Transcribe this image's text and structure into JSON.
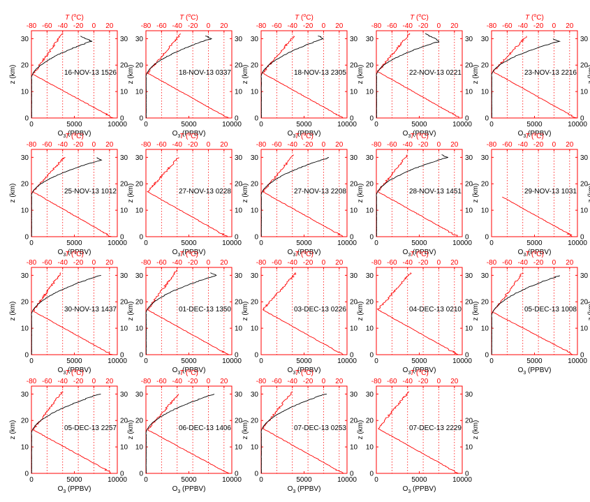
{
  "labels": {
    "top_axis_T": "T",
    "top_axis_unit": " (°C)",
    "top_axis_unit_sup": "o",
    "bottom_axis_O3": "O",
    "bottom_axis_sub": "3",
    "bottom_axis_unit": " (PPBV)",
    "left_axis": "z (km)",
    "right_axis": "z (km)"
  },
  "colors": {
    "temperature": "#ff0000",
    "ozone": "#000000",
    "frame": "#ff0000",
    "tick_text": "#000000",
    "top_tick_text": "#ff0000"
  },
  "chart_data": {
    "type": "line",
    "panel_count": 19,
    "x_ozone": {
      "label": "O3 (PPBV)",
      "lim": [
        0,
        10000
      ],
      "ticks": [
        0,
        5000,
        10000
      ]
    },
    "x_temperature": {
      "label": "T (°C)",
      "lim": [
        -80,
        30
      ],
      "ticks": [
        -80,
        -60,
        -40,
        -20,
        0,
        20
      ]
    },
    "y": {
      "label": "z (km)",
      "lim": [
        0,
        33
      ],
      "ticks": [
        0,
        10,
        20,
        30
      ]
    },
    "grid": "dotted vertical at temperature ticks",
    "series_colors": {
      "temperature": "#ff0000",
      "ozone": "#000000"
    },
    "panels": [
      {
        "label": "16-NOV-13 1526",
        "o3_top": 7000,
        "o3_top_z": 31,
        "t_top": -40,
        "t_top_z": 32,
        "t_surface": 25,
        "min_z": 16.5,
        "o3_peak_z": 29
      },
      {
        "label": "18-NOV-13 0337",
        "o3_top": 7600,
        "o3_top_z": 31,
        "t_top": -35,
        "t_top_z": 32,
        "t_surface": 25,
        "min_z": 17,
        "o3_peak_z": 30
      },
      {
        "label": "18-NOV-13 2305",
        "o3_top": 7300,
        "o3_top_z": 31,
        "t_top": -38,
        "t_top_z": 31,
        "t_surface": 25,
        "min_z": 17,
        "o3_peak_z": 30
      },
      {
        "label": "22-NOV-13 0221",
        "o3_top": 7400,
        "o3_top_z": 32,
        "t_top": -37,
        "t_top_z": 32,
        "t_surface": 27,
        "min_z": 17.5,
        "o3_peak_z": 29
      },
      {
        "label": "23-NOV-13 2216",
        "o3_top": 7800,
        "o3_top_z": 30,
        "t_top": -35,
        "t_top_z": 31,
        "t_surface": 28,
        "min_z": 17.5,
        "o3_peak_z": 29
      },
      {
        "label": "25-NOV-13 1012",
        "o3_top": 8100,
        "o3_top_z": 30,
        "t_top": -38,
        "t_top_z": 30,
        "t_surface": 22,
        "min_z": 17,
        "o3_peak_z": 29
      },
      {
        "label": "27-NOV-13 0228",
        "t_top": -38,
        "t_top_z": 30,
        "t_surface": 24,
        "min_z": 17
      },
      {
        "label": "27-NOV-13 2208",
        "o3_top": 8000,
        "o3_top_z": 30,
        "t_top": -38,
        "t_top_z": 31,
        "t_surface": 25,
        "min_z": 17,
        "o3_peak_z": 30
      },
      {
        "label": "28-NOV-13 1451",
        "o3_top": 8300,
        "o3_top_z": 31,
        "t_top": -40,
        "t_top_z": 31,
        "t_surface": 25,
        "min_z": 17,
        "o3_peak_z": 30
      },
      {
        "label": "29-NOV-13 1031",
        "t_surface": 25,
        "t_top_z": 15
      },
      {
        "label": "30-NOV-13 1437",
        "o3_top": 8000,
        "o3_top_z": 30,
        "t_top": -42,
        "t_top_z": 31,
        "t_surface": 23,
        "min_z": 16.5,
        "o3_peak_z": 30
      },
      {
        "label": "01-DEC-13 1350",
        "o3_top": 8200,
        "o3_top_z": 31,
        "t_top": -40,
        "t_top_z": 32,
        "t_surface": 25,
        "min_z": 17,
        "o3_peak_z": 30
      },
      {
        "label": "03-DEC-13 0226",
        "t_top": -35,
        "t_top_z": 31,
        "t_surface": 25,
        "min_z": 17
      },
      {
        "label": "04-DEC-13 0210",
        "t_top": -36,
        "t_top_z": 31,
        "t_surface": 25,
        "min_z": 17
      },
      {
        "label": "05-DEC-13 1008",
        "o3_top": 8000,
        "o3_top_z": 30,
        "t_top": -40,
        "t_top_z": 31,
        "t_surface": 25,
        "min_z": 16,
        "o3_peak_z": 30
      },
      {
        "label": "05-DEC-13 2257",
        "o3_top": 8000,
        "o3_top_z": 30,
        "t_top": -40,
        "t_top_z": 31,
        "t_surface": 24,
        "min_z": 16.5,
        "o3_peak_z": 30
      },
      {
        "label": "06-DEC-13 1406",
        "o3_top": 8000,
        "o3_top_z": 30,
        "t_top": -38,
        "t_top_z": 30,
        "t_surface": 25,
        "min_z": 16.5,
        "o3_peak_z": 30
      },
      {
        "label": "07-DEC-13 0253",
        "o3_top": 7500,
        "o3_top_z": 30,
        "t_top": -40,
        "t_top_z": 31,
        "t_surface": 25,
        "min_z": 17,
        "o3_peak_z": 30
      },
      {
        "label": "07-DEC-13 2229",
        "t_top": -38,
        "t_top_z": 31,
        "t_surface": 25,
        "min_z": 17
      }
    ]
  }
}
